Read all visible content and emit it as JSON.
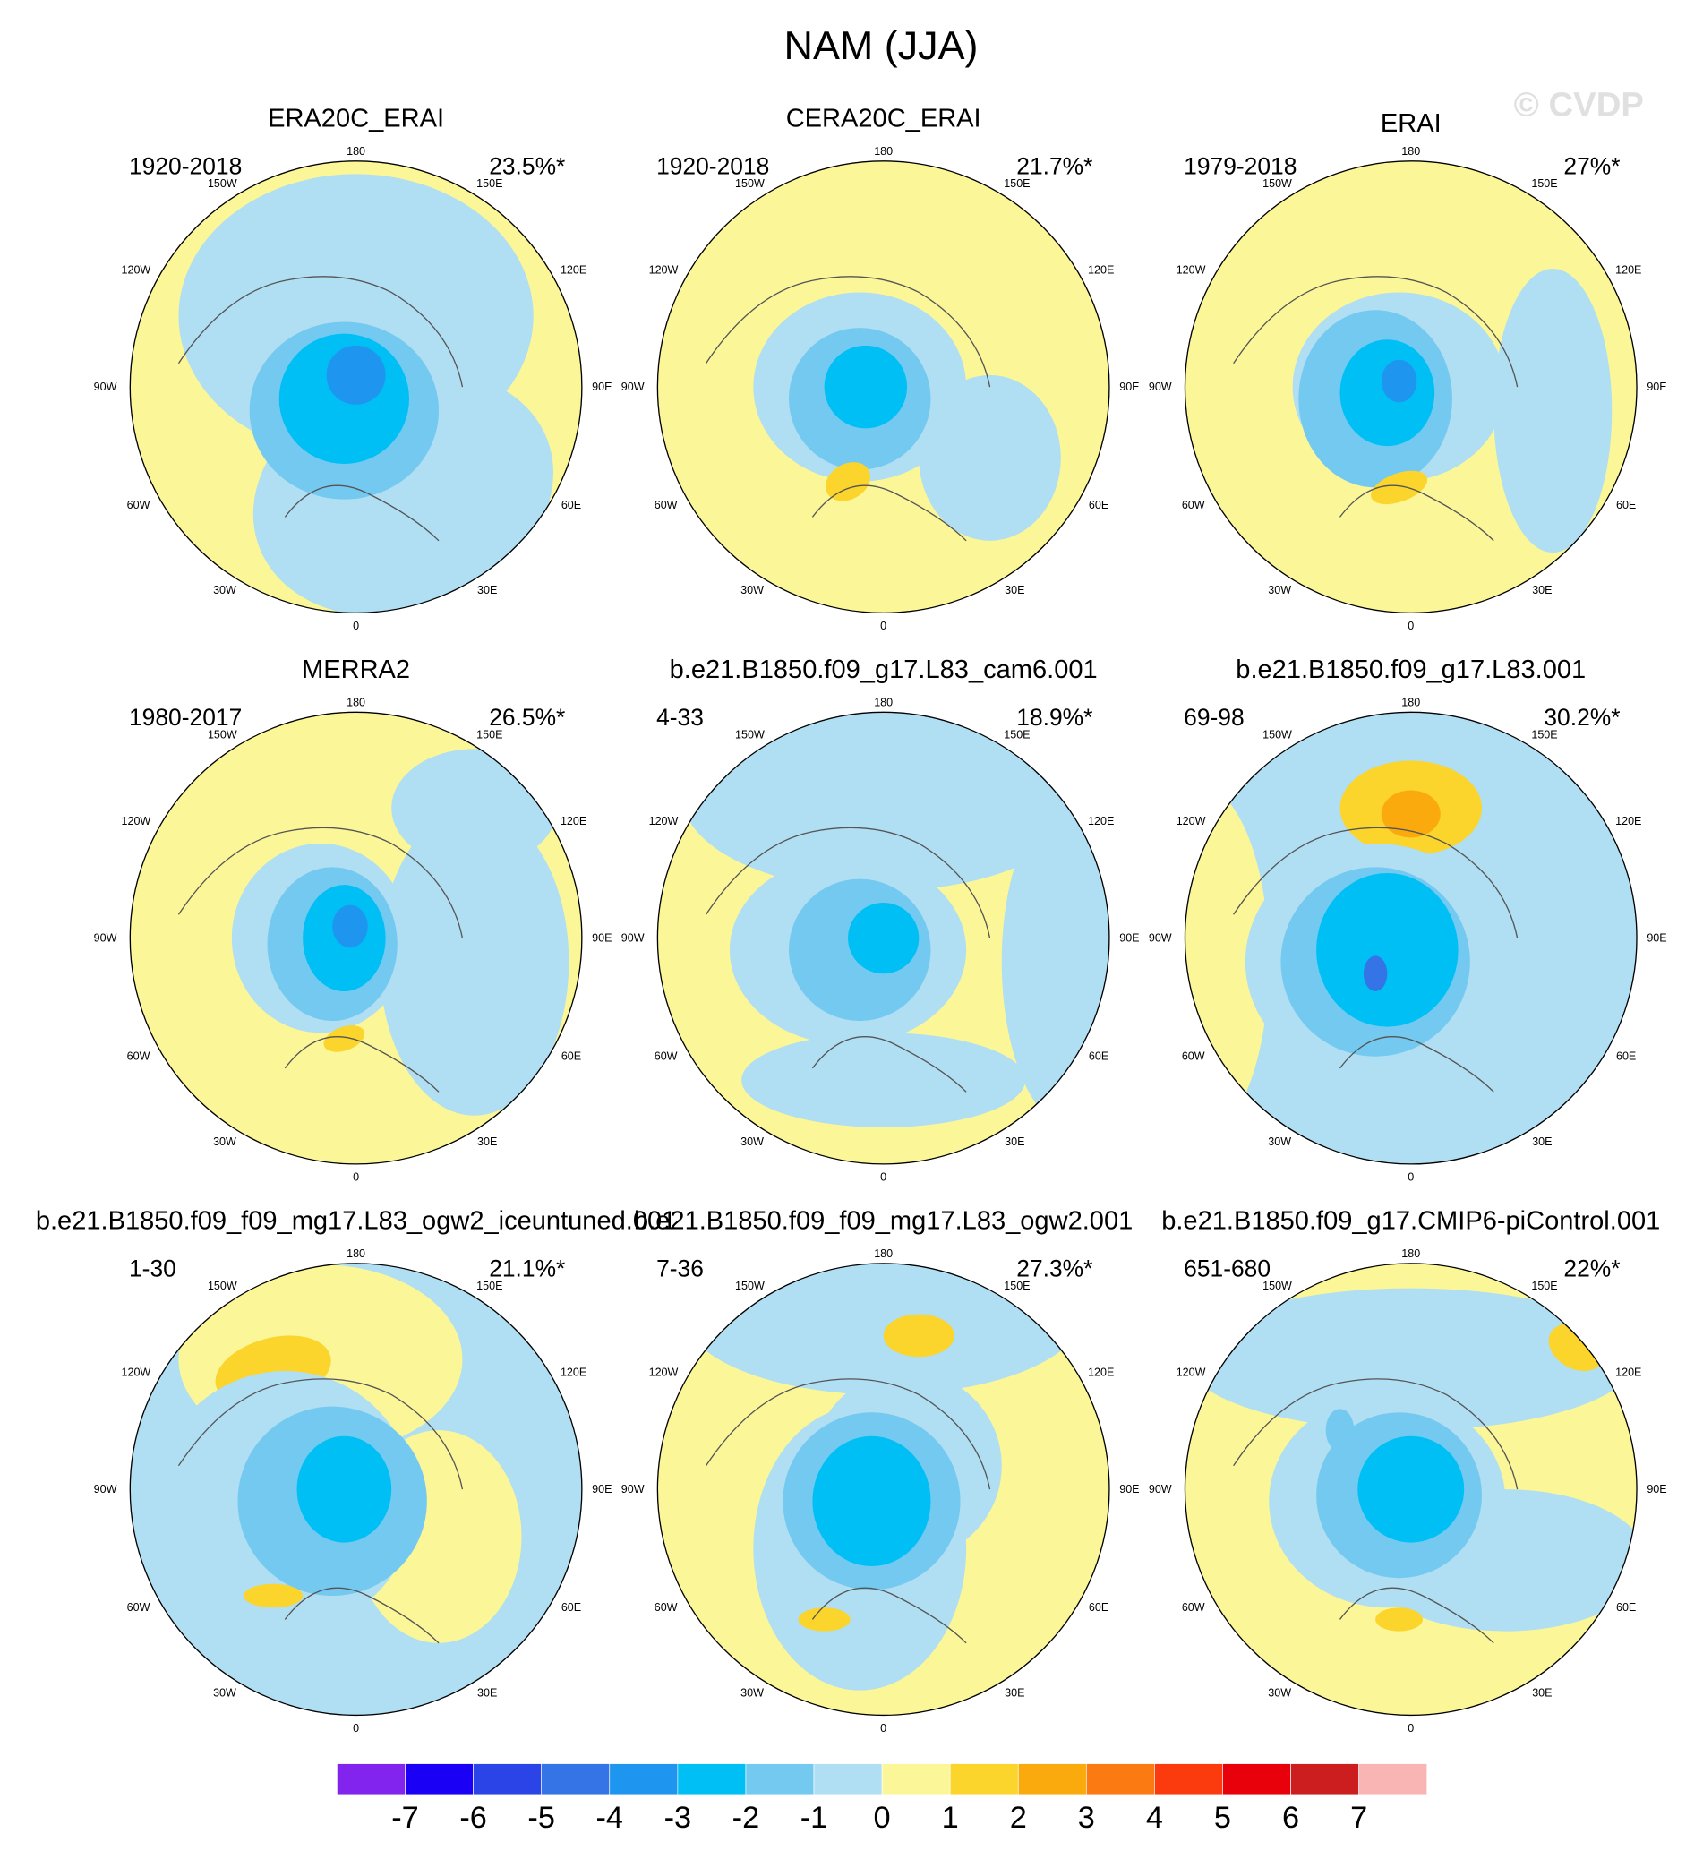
{
  "title": "NAM (JJA)",
  "watermark": "© CVDP",
  "longitude_labels": [
    "180",
    "150W",
    "150E",
    "120W",
    "120E",
    "90W",
    "90E",
    "60W",
    "60E",
    "30W",
    "30E",
    "0"
  ],
  "panels": [
    {
      "title": "ERA20C_ERAI",
      "period": "1920-2018",
      "percent": "23.5%*"
    },
    {
      "title": "CERA20C_ERAI",
      "period": "1920-2018",
      "percent": "21.7%*"
    },
    {
      "title": "ERAI",
      "period": "1979-2018",
      "percent": "27%*"
    },
    {
      "title": "MERRA2",
      "period": "1980-2017",
      "percent": "26.5%*"
    },
    {
      "title": "b.e21.B1850.f09_g17.L83_cam6.001",
      "period": "4-33",
      "percent": "18.9%*"
    },
    {
      "title": "b.e21.B1850.f09_g17.L83.001",
      "period": "69-98",
      "percent": "30.2%*"
    },
    {
      "title": "b.e21.B1850.f09_f09_mg17.L83_ogw2_iceuntuned.001",
      "period": "1-30",
      "percent": "21.1%*"
    },
    {
      "title": "b.e21.B1850.f09_f09_mg17.L83_ogw2.001",
      "period": "7-36",
      "percent": "27.3%*"
    },
    {
      "title": "b.e21.B1850.f09_g17.CMIP6-piControl.001",
      "period": "651-680",
      "percent": "22%*"
    }
  ],
  "colorbar": {
    "colors": [
      "#8224ee",
      "#1a00f5",
      "#2a44e8",
      "#3474e6",
      "#1e96f0",
      "#00bff5",
      "#74c9f0",
      "#b0def2",
      "#fbf698",
      "#fbd42c",
      "#fbaa0e",
      "#fb7a12",
      "#fb3a0e",
      "#e8000a",
      "#cc1e1e",
      "#f9b4b4"
    ],
    "ticks": [
      -7,
      -6,
      -5,
      -4,
      -3,
      -2,
      -1,
      0,
      1,
      2,
      3,
      4,
      5,
      6,
      7
    ]
  }
}
